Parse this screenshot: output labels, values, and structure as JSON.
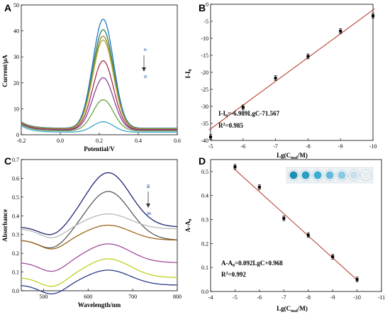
{
  "chart_data": [
    {
      "panel": "A",
      "type": "line",
      "xlabel": "Potential/V",
      "ylabel": "Current/μA",
      "xlim": [
        -0.2,
        0.6
      ],
      "ylim": [
        0,
        50
      ],
      "xticks": [
        "-0.2",
        "0.0",
        "0.2",
        "0.4",
        "0.6"
      ],
      "yticks": [
        "0",
        "10",
        "20",
        "30",
        "40",
        "50"
      ],
      "annotations": [
        "a",
        "n"
      ],
      "series": [
        {
          "peak": 44.5,
          "base": 2.5,
          "color": "#2277c8"
        },
        {
          "peak": 40.5,
          "base": 2.4,
          "color": "#2e7d5b"
        },
        {
          "peak": 38.0,
          "base": 2.3,
          "color": "#8c8c20"
        },
        {
          "peak": 36.5,
          "base": 2.2,
          "color": "#b5a63a"
        },
        {
          "peak": 28.5,
          "base": 2.0,
          "color": "#a0304e"
        },
        {
          "peak": 22.0,
          "base": 1.8,
          "color": "#8a3fa0"
        },
        {
          "peak": 13.5,
          "base": 1.5,
          "color": "#6aa040"
        },
        {
          "peak": 5.0,
          "base": 1.0,
          "color": "#3aa7c8"
        }
      ]
    },
    {
      "panel": "B",
      "type": "scatter",
      "xlabel": "Lg(C_mal/M)",
      "ylabel": "I-I_0",
      "xlim": [
        -5,
        -10
      ],
      "ylim": [
        -40,
        0
      ],
      "xticks": [
        "-5",
        "-6",
        "-7",
        "-8",
        "-9",
        "-10"
      ],
      "yticks": [
        "-40",
        "-35",
        "-30",
        "-25",
        "-20",
        "-15",
        "-10",
        "-5",
        "0"
      ],
      "x": [
        -5,
        -6,
        -7,
        -8,
        -9,
        -10
      ],
      "y": [
        -39.0,
        -30.3,
        -21.7,
        -15.3,
        -7.9,
        -3.4
      ],
      "fit": {
        "slope": -6.989,
        "intercept": -71.567
      },
      "equation": "I-I₀=-6.989LgC-71.567",
      "r2": "R²=0.985"
    },
    {
      "panel": "C",
      "type": "line",
      "xlabel": "Wavelength/nm",
      "ylabel": "Absorbance",
      "xlim": [
        450,
        800
      ],
      "ylim": [
        0,
        0.7
      ],
      "xticks": [
        "500",
        "600",
        "700",
        "800"
      ],
      "yticks": [
        "0.0",
        "0.1",
        "0.2",
        "0.3",
        "0.4",
        "0.5",
        "0.6",
        "0.7"
      ],
      "annotations": [
        "a",
        "g"
      ],
      "series": [
        {
          "peak": 0.63,
          "base": 0.34,
          "color": "#1c2570"
        },
        {
          "peak": 0.53,
          "base": 0.27,
          "color": "#5a5a5a"
        },
        {
          "peak": 0.41,
          "base": 0.33,
          "color": "#b8b8b8"
        },
        {
          "peak": 0.35,
          "base": 0.27,
          "color": "#a06418"
        },
        {
          "peak": 0.25,
          "base": 0.15,
          "color": "#a04a9a"
        },
        {
          "peak": 0.17,
          "base": 0.07,
          "color": "#c0d020"
        },
        {
          "peak": 0.11,
          "base": 0.03,
          "color": "#2a3a8a"
        }
      ]
    },
    {
      "panel": "D",
      "type": "scatter",
      "xlabel": "Lg(C_mal/M)",
      "ylabel": "A-A_0",
      "xlim": [
        -4,
        -11
      ],
      "ylim": [
        0,
        0.55
      ],
      "xticks": [
        "-4",
        "-5",
        "-6",
        "-7",
        "-8",
        "-9",
        "-10",
        "-11"
      ],
      "yticks": [
        "0.0",
        "0.1",
        "0.2",
        "0.3",
        "0.4",
        "0.5"
      ],
      "x": [
        -5,
        -6,
        -7,
        -8,
        -9,
        -10
      ],
      "y": [
        0.52,
        0.435,
        0.305,
        0.235,
        0.145,
        0.05
      ],
      "fit": {
        "slope": 0.092,
        "intercept": 0.968
      },
      "equation": "A-A₀=0.092LgC+0.968",
      "r2": "R²=0.992"
    }
  ],
  "labels": {
    "panelA": "A",
    "panelB": "B",
    "panelC": "C",
    "panelD": "D",
    "ylabelA": "Current/μA",
    "xlabelA": "Potential/V",
    "xlabelC": "Wavelength/nm",
    "ylabelC": "Absorbance",
    "annA_top": "a",
    "annA_bot": "n",
    "annC_top": "a",
    "annC_bot": "g",
    "lg": "Lg(C",
    "mal": "mal",
    "lgEnd": "/M)",
    "yB_main": "I-I",
    "yB_sub": "0",
    "yD_main": "A-A",
    "yD_sub": "0",
    "eqB_pre": "I-I",
    "eqB_sub": "0",
    "eqB_post": "=-6.989LgC-71.567",
    "eqB_r2": "R",
    "eqB_r2sup": "2",
    "eqB_r2val": "=0.985",
    "eqD_pre": "A-A",
    "eqD_sub": "0",
    "eqD_post": "=0.092LgC+0.968",
    "eqD_r2": "R",
    "eqD_r2sup": "2",
    "eqD_r2val": "=0.992"
  },
  "colors": {
    "fit_line": "#b03020",
    "marker": "#000000",
    "well_colors": [
      "#1e8fb0",
      "#2a9dc0",
      "#3aaed0",
      "#66b8d8",
      "#8cc8e0",
      "#c8e0ea",
      "#e6eef2"
    ]
  }
}
